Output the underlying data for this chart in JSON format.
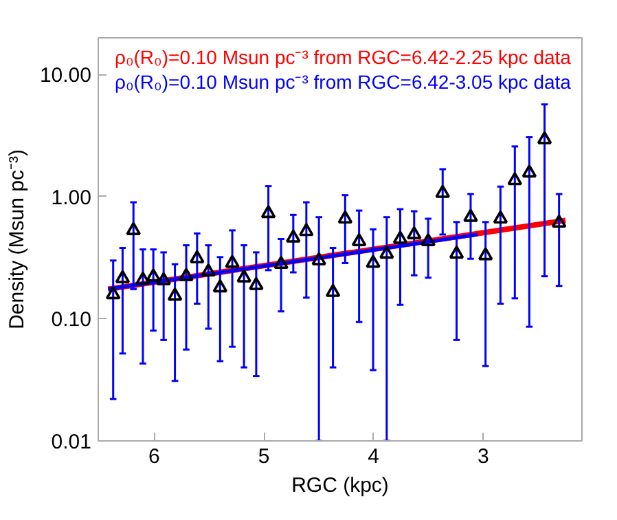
{
  "chart_data": {
    "type": "scatter",
    "xlabel": "RGC (kpc)",
    "ylabel": "Density (Msun pc⁻³)",
    "xlim": [
      6.51,
      2.1
    ],
    "xticks": [
      6,
      5,
      4,
      3
    ],
    "ylim": [
      0.01,
      20
    ],
    "yticks": [
      0.01,
      {
        "value": 0.1,
        "label": "0.10"
      },
      {
        "value": 1,
        "label": "1.00"
      },
      {
        "value": 10,
        "label": "10.00"
      }
    ],
    "log": "y",
    "grid": false,
    "series": [
      {
        "type": "line",
        "name": "ρ₀(R₀)=0.10 Msun pc⁻³ from RGC=6.42-2.25 kpc data",
        "color": "#ff0000",
        "x": [
          6.42,
          2.25
        ],
        "values": [
          0.175,
          0.64
        ]
      },
      {
        "type": "line",
        "name": "ρ₀(R₀)=0.10 Msun pc⁻³ from RGC=6.42-3.05 kpc data",
        "color": "#0000ff",
        "x": [
          6.42,
          3.05
        ],
        "values": [
          0.175,
          0.49
        ]
      },
      {
        "color": "#000000",
        "marker": "triangle",
        "x": [
          6.374,
          6.288,
          6.189,
          6.103,
          6.008,
          5.914,
          5.811,
          5.708,
          5.609,
          5.506,
          5.399,
          5.288,
          5.181,
          5.07,
          4.959,
          4.843,
          4.732,
          4.613,
          4.498,
          4.37,
          4.259,
          4.132,
          4.004,
          3.88,
          3.757,
          3.63,
          3.502,
          3.37,
          3.243,
          3.115,
          2.979,
          2.843,
          2.712,
          2.58,
          2.441,
          2.309
        ],
        "values": [
          0.158,
          0.214,
          0.53,
          0.208,
          0.221,
          0.206,
          0.154,
          0.223,
          0.312,
          0.243,
          0.18,
          0.286,
          0.217,
          0.188,
          0.73,
          0.28,
          0.46,
          0.52,
          0.3,
          0.165,
          0.66,
          0.43,
          0.286,
          0.34,
          0.45,
          0.49,
          0.43,
          1.07,
          0.34,
          0.68,
          0.33,
          0.66,
          1.36,
          1.57,
          2.94,
          0.61
        ],
        "errors": [
          [
            0.022,
            0.3
          ],
          [
            0.052,
            0.38
          ],
          [
            0.175,
            0.9
          ],
          [
            0.043,
            0.37
          ],
          [
            0.08,
            0.37
          ],
          [
            0.067,
            0.35
          ],
          [
            0.031,
            0.28
          ],
          [
            0.056,
            0.4
          ],
          [
            0.133,
            0.5
          ],
          [
            0.083,
            0.4
          ],
          [
            0.045,
            0.32
          ],
          [
            0.059,
            0.53
          ],
          [
            0.04,
            0.4
          ],
          [
            0.034,
            0.35
          ],
          [
            0.25,
            1.22
          ],
          [
            0.115,
            0.45
          ],
          [
            0.24,
            0.71
          ],
          [
            0.149,
            0.9
          ],
          [
            0.01,
            0.68
          ],
          [
            0.04,
            0.38
          ],
          [
            0.286,
            1.03
          ],
          [
            0.094,
            0.77
          ],
          [
            0.038,
            0.54
          ],
          [
            0.01,
            0.68
          ],
          [
            0.13,
            0.79
          ],
          [
            0.227,
            0.76
          ],
          [
            0.217,
            0.66
          ],
          [
            0.49,
            1.68
          ],
          [
            0.067,
            0.62
          ],
          [
            0.31,
            1.05
          ],
          [
            0.041,
            0.62
          ],
          [
            0.133,
            1.21
          ],
          [
            0.147,
            2.58
          ],
          [
            0.086,
            3.07
          ],
          [
            0.223,
            5.7
          ],
          [
            0.186,
            1.05
          ]
        ]
      }
    ]
  }
}
